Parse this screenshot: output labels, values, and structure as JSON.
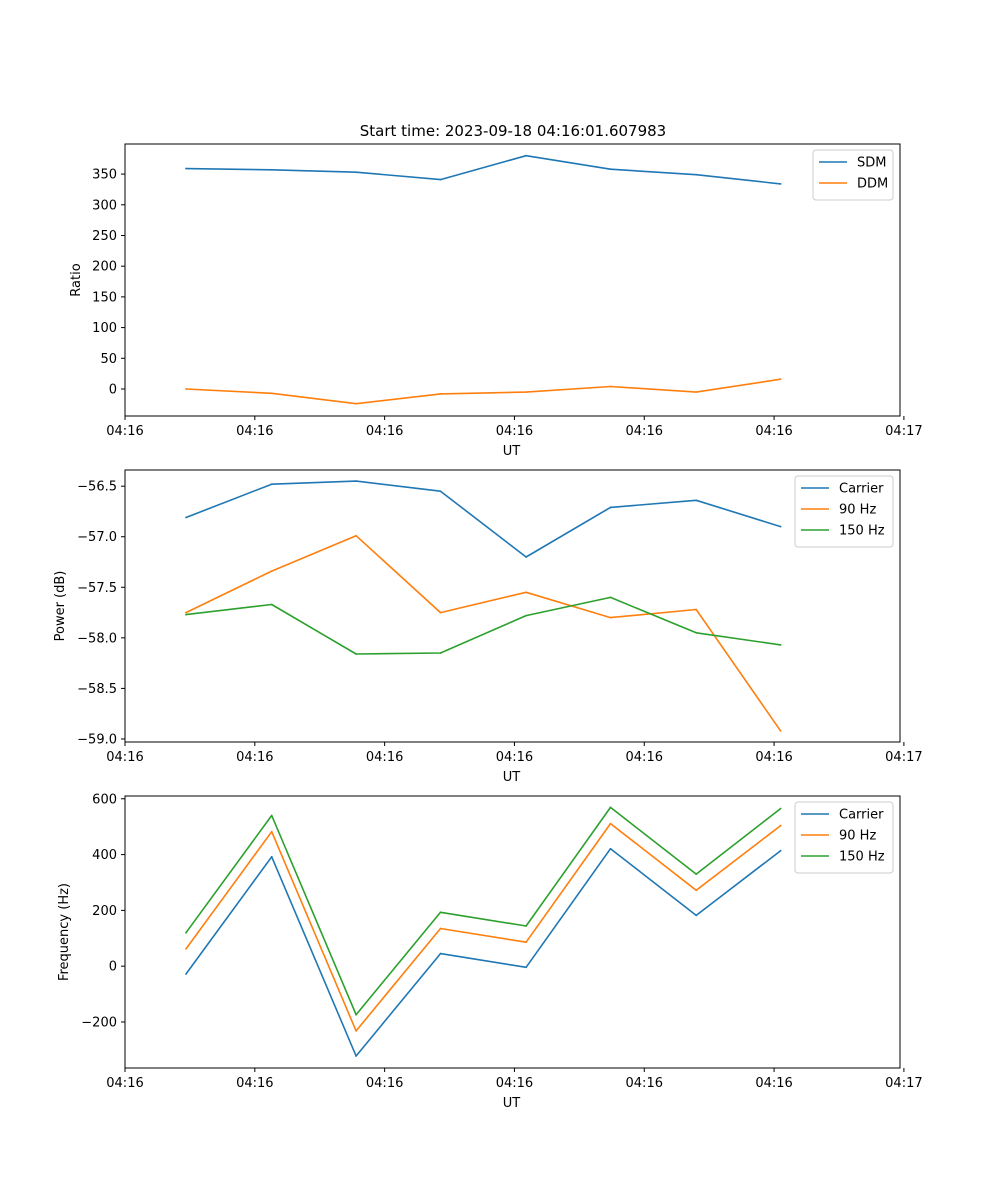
{
  "title": "Start time: 2023-09-18 04:16:01.607983",
  "chart_data": [
    {
      "type": "line",
      "title": "Start time: 2023-09-18 04:16:01.607983",
      "xlabel": "UT",
      "ylabel": "Ratio",
      "x": [
        0.72,
        1.38,
        2.03,
        2.68,
        3.34,
        3.99,
        4.65,
        5.3
      ],
      "xlim": [
        0.25,
        6.22
      ],
      "x_ticks": [
        0.25,
        1.25,
        2.25,
        3.25,
        4.25,
        5.25,
        6.25
      ],
      "x_tick_labels": [
        "04:16",
        "04:16",
        "04:16",
        "04:16",
        "04:16",
        "04:16",
        "04:17"
      ],
      "ylim": [
        -44,
        399
      ],
      "y_ticks": [
        0,
        50,
        100,
        150,
        200,
        250,
        300,
        350
      ],
      "y_tick_labels": [
        "0",
        "50",
        "100",
        "150",
        "200",
        "250",
        "300",
        "350"
      ],
      "legend": "top-right",
      "series": [
        {
          "name": "SDM",
          "color": "#1f77b4",
          "values": [
            359,
            357,
            353,
            341,
            380,
            358,
            349,
            334
          ]
        },
        {
          "name": "DDM",
          "color": "#ff7f0e",
          "values": [
            0,
            -7,
            -24,
            -8,
            -5,
            4,
            -5,
            16
          ]
        }
      ]
    },
    {
      "type": "line",
      "title": "",
      "xlabel": "UT",
      "ylabel": "Power (dB)",
      "x": [
        0.72,
        1.38,
        2.03,
        2.68,
        3.34,
        3.99,
        4.65,
        5.3
      ],
      "xlim": [
        0.25,
        6.22
      ],
      "x_ticks": [
        0.25,
        1.25,
        2.25,
        3.25,
        4.25,
        5.25,
        6.25
      ],
      "x_tick_labels": [
        "04:16",
        "04:16",
        "04:16",
        "04:16",
        "04:16",
        "04:16",
        "04:17"
      ],
      "ylim": [
        -59.03,
        -56.34
      ],
      "y_ticks": [
        -59.0,
        -58.5,
        -58.0,
        -57.5,
        -57.0,
        -56.5
      ],
      "y_tick_labels": [
        "−59.0",
        "−58.5",
        "−58.0",
        "−57.5",
        "−57.0",
        "−56.5"
      ],
      "legend": "top-right",
      "series": [
        {
          "name": "Carrier",
          "color": "#1f77b4",
          "values": [
            -56.81,
            -56.48,
            -56.45,
            -56.55,
            -57.2,
            -56.71,
            -56.64,
            -56.9
          ]
        },
        {
          "name": "90 Hz",
          "color": "#ff7f0e",
          "values": [
            -57.75,
            -57.34,
            -56.99,
            -57.75,
            -57.55,
            -57.8,
            -57.72,
            -58.92
          ]
        },
        {
          "name": "150 Hz",
          "color": "#2ca02c",
          "values": [
            -57.77,
            -57.67,
            -58.16,
            -58.15,
            -57.78,
            -57.6,
            -57.95,
            -58.07
          ]
        }
      ]
    },
    {
      "type": "line",
      "title": "",
      "xlabel": "UT",
      "ylabel": "Frequency (Hz)",
      "x": [
        0.72,
        1.38,
        2.03,
        2.68,
        3.34,
        3.99,
        4.65,
        5.3
      ],
      "xlim": [
        0.25,
        6.22
      ],
      "x_ticks": [
        0.25,
        1.25,
        2.25,
        3.25,
        4.25,
        5.25,
        6.25
      ],
      "x_tick_labels": [
        "04:16",
        "04:16",
        "04:16",
        "04:16",
        "04:16",
        "04:16",
        "04:17"
      ],
      "ylim": [
        -365,
        610
      ],
      "y_ticks": [
        -200,
        0,
        200,
        400,
        600
      ],
      "y_tick_labels": [
        "−200",
        "0",
        "200",
        "400",
        "600"
      ],
      "legend": "top-right",
      "series": [
        {
          "name": "Carrier",
          "color": "#1f77b4",
          "values": [
            -28,
            392,
            -322,
            45,
            -4,
            421,
            182,
            414
          ]
        },
        {
          "name": "90 Hz",
          "color": "#ff7f0e",
          "values": [
            62,
            482,
            -232,
            135,
            86,
            511,
            272,
            504
          ]
        },
        {
          "name": "150 Hz",
          "color": "#2ca02c",
          "values": [
            120,
            540,
            -174,
            193,
            144,
            569,
            330,
            565
          ]
        }
      ]
    }
  ]
}
